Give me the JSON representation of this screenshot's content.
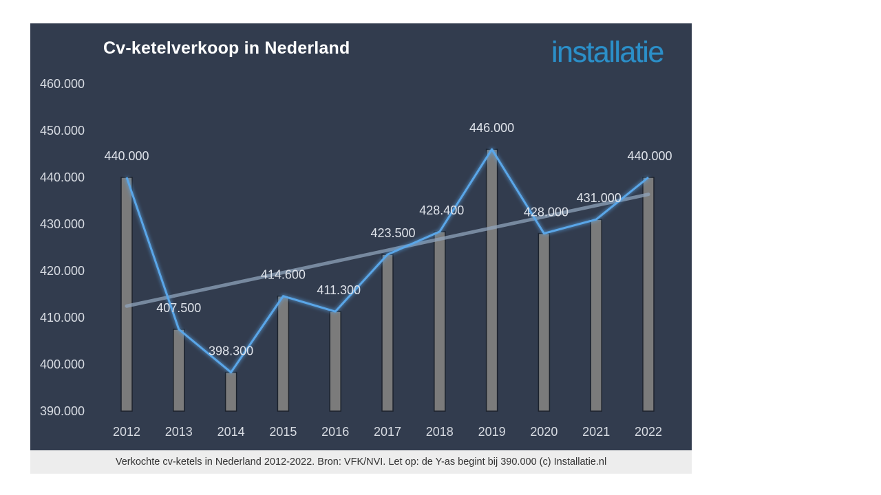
{
  "chart_data": {
    "type": "bar",
    "title": "Cv-ketelverkoop in Nederland",
    "categories": [
      "2012",
      "2013",
      "2014",
      "2015",
      "2016",
      "2017",
      "2018",
      "2019",
      "2020",
      "2021",
      "2022"
    ],
    "series": [
      {
        "values": [
          440000,
          407500,
          398300,
          414600,
          411300,
          423500,
          428400,
          446000,
          428000,
          431000,
          440000
        ]
      }
    ],
    "data_labels": [
      "440.000",
      "407.500",
      "398.300",
      "414.600",
      "411.300",
      "423.500",
      "428.400",
      "446.000",
      "428.000",
      "431.000",
      "440.000"
    ],
    "overlay_line": true,
    "trendline": "linear",
    "ylim": [
      390000,
      460000
    ],
    "yticks": [
      390000,
      400000,
      410000,
      420000,
      430000,
      440000,
      450000,
      460000
    ],
    "ytick_labels": [
      "390.000",
      "400.000",
      "410.000",
      "420.000",
      "430.000",
      "440.000",
      "450.000",
      "460.000"
    ],
    "grid": false,
    "legend": "none",
    "colors": {
      "background": "#323c4e",
      "bar": "#7b7b7b",
      "line": "#5aa6e8",
      "trendline": "#8fa3bb",
      "title": "#ffffff",
      "labels": "#dfe3ea"
    }
  },
  "brand": {
    "logo_text": "installatie"
  },
  "caption": "Verkochte cv-ketels in Nederland 2012-2022. Bron: VFK/NVI. Let op: de Y-as begint bij 390.000 (c) Installatie.nl"
}
